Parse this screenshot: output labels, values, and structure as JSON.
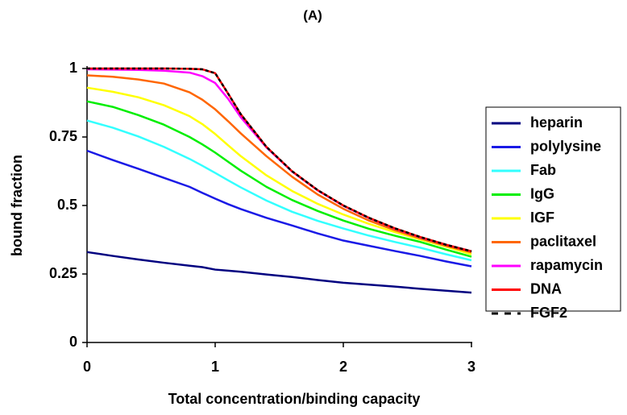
{
  "chart_data": {
    "type": "line",
    "title": "(A)",
    "x_label": "Total concentration/binding capacity",
    "y_label": "bound fraction",
    "x": [
      0,
      0.2,
      0.4,
      0.6,
      0.8,
      0.9,
      1,
      1.1,
      1.2,
      1.4,
      1.6,
      1.8,
      2,
      2.2,
      2.4,
      2.6,
      2.8,
      3
    ],
    "xlim": [
      0,
      3
    ],
    "xticks": [
      0,
      1,
      2,
      3
    ],
    "ylim": [
      0,
      1
    ],
    "yticks": [
      0,
      0.25,
      0.5,
      0.75,
      1
    ],
    "grid": false,
    "legend": "right",
    "series": [
      {
        "name": "heparin",
        "color": "#000080",
        "values": [
          0.33,
          0.316,
          0.303,
          0.291,
          0.28,
          0.275,
          0.266,
          0.262,
          0.258,
          0.248,
          0.239,
          0.228,
          0.218,
          0.211,
          0.204,
          0.196,
          0.189,
          0.182
        ]
      },
      {
        "name": "polylysine",
        "color": "#1a1ae6",
        "values": [
          0.7,
          0.666,
          0.634,
          0.601,
          0.568,
          0.546,
          0.525,
          0.505,
          0.487,
          0.455,
          0.427,
          0.398,
          0.372,
          0.353,
          0.334,
          0.316,
          0.296,
          0.278
        ]
      },
      {
        "name": "Fab",
        "color": "#33ffff",
        "values": [
          0.81,
          0.784,
          0.752,
          0.714,
          0.67,
          0.645,
          0.619,
          0.592,
          0.566,
          0.518,
          0.477,
          0.444,
          0.416,
          0.39,
          0.367,
          0.346,
          0.322,
          0.3
        ]
      },
      {
        "name": "IgG",
        "color": "#00ee00",
        "values": [
          0.88,
          0.86,
          0.83,
          0.795,
          0.75,
          0.723,
          0.693,
          0.66,
          0.627,
          0.568,
          0.52,
          0.48,
          0.445,
          0.415,
          0.39,
          0.367,
          0.339,
          0.313
        ]
      },
      {
        "name": "IGF",
        "color": "#ffff00",
        "values": [
          0.93,
          0.915,
          0.895,
          0.866,
          0.826,
          0.797,
          0.761,
          0.72,
          0.68,
          0.61,
          0.553,
          0.506,
          0.467,
          0.433,
          0.403,
          0.376,
          0.35,
          0.322
        ]
      },
      {
        "name": "paclitaxel",
        "color": "#ff6600",
        "values": [
          0.975,
          0.97,
          0.96,
          0.945,
          0.913,
          0.886,
          0.851,
          0.808,
          0.763,
          0.68,
          0.605,
          0.54,
          0.488,
          0.445,
          0.41,
          0.38,
          0.353,
          0.329
        ]
      },
      {
        "name": "rapamycin",
        "color": "#ff00ff",
        "values": [
          0.997,
          0.996,
          0.995,
          0.992,
          0.985,
          0.972,
          0.947,
          0.89,
          0.822,
          0.712,
          0.624,
          0.555,
          0.499,
          0.454,
          0.416,
          0.384,
          0.357,
          0.333
        ]
      },
      {
        "name": "DNA",
        "color": "#ff0000",
        "values": [
          1,
          1,
          1,
          1,
          0.999,
          0.997,
          0.983,
          0.909,
          0.833,
          0.714,
          0.625,
          0.556,
          0.5,
          0.455,
          0.417,
          0.385,
          0.357,
          0.333
        ]
      },
      {
        "name": "FGF2",
        "color": "#000000",
        "dashed": true,
        "values": [
          1,
          1,
          1,
          1,
          0.999,
          0.997,
          0.983,
          0.909,
          0.833,
          0.714,
          0.625,
          0.556,
          0.5,
          0.455,
          0.417,
          0.385,
          0.357,
          0.333
        ]
      }
    ]
  }
}
